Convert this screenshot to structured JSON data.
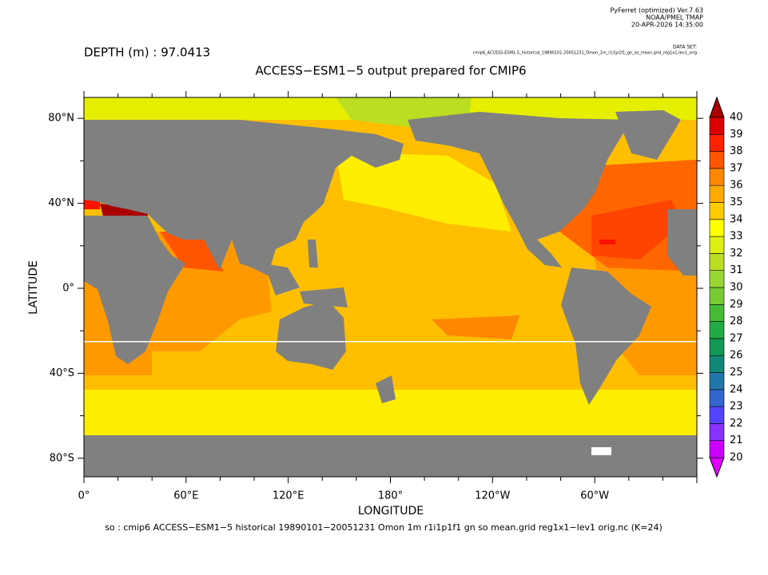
{
  "header": {
    "program": "PyFerret (optimized) Ver.7.63",
    "organization": "NOAA/PMEL TMAP",
    "timestamp": "20-APR-2026 14:35:00",
    "dataset_label": "DATA SET:",
    "dataset": "cmip6_ACCESS-ESM1-5_historical_19890101-20051231_Omon_1m_r1i1p1f1_gn_so_mean.grid_reg1x1-lev1_orig"
  },
  "depth": "DEPTH (m) : 97.0413",
  "title": "ACCESS−ESM1−5 output prepared for CMIP6",
  "x_axis": {
    "label": "LONGITUDE",
    "ticks": [
      "0°",
      "60°E",
      "120°E",
      "180°",
      "120°W",
      "60°W"
    ]
  },
  "y_axis": {
    "label": "LATITUDE",
    "ticks": [
      "80°N",
      "40°N",
      "0°",
      "40°S",
      "80°S"
    ]
  },
  "colorbar": {
    "levels": [
      20,
      21,
      22,
      23,
      24,
      25,
      26,
      27,
      28,
      29,
      30,
      31,
      32,
      33,
      34,
      35,
      36,
      37,
      38,
      39,
      40
    ],
    "colors": [
      "#dd00ff",
      "#cc00ff",
      "#8833ff",
      "#5544ff",
      "#3366cc",
      "#2277aa",
      "#118877",
      "#119955",
      "#22aa44",
      "#44bb33",
      "#77cc33",
      "#99d633",
      "#bbdd22",
      "#ddee11",
      "#ffff00",
      "#ffcc00",
      "#ffaa00",
      "#ff8800",
      "#ff5500",
      "#ff2200",
      "#dd0000",
      "#aa0000"
    ]
  },
  "footer": "so : cmip6 ACCESS−ESM1−5 historical 19890101−20051231 Omon 1m r1i1p1f1 gn so mean.grid reg1x1−lev1 orig.nc (K=24)"
}
